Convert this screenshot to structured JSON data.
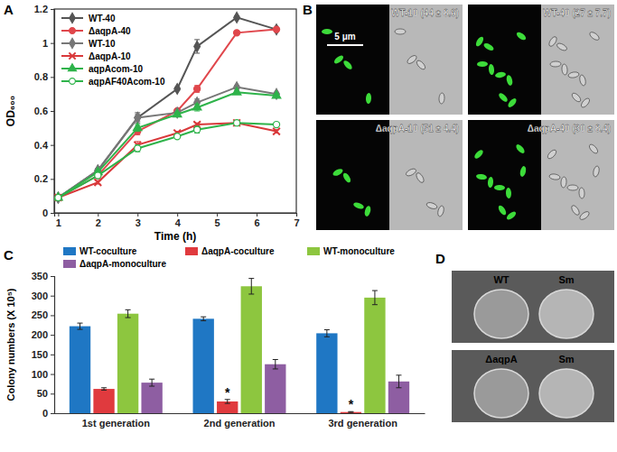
{
  "chart_data": [
    {
      "type": "line",
      "title": "A",
      "x_label": "Time (h)",
      "y_label": "OD₆₀₀",
      "x": [
        1,
        2,
        3,
        4,
        4.5,
        5.5,
        6.5
      ],
      "xlim": [
        0.9,
        7
      ],
      "xticks": [
        1,
        2,
        3,
        4,
        5,
        6,
        7
      ],
      "ylim": [
        0,
        1.2
      ],
      "yticks": [
        0,
        0.2,
        0.4,
        0.6,
        0.8,
        1,
        1.2
      ],
      "legend": "top-left",
      "series": [
        {
          "name": "WT-40",
          "color": "#555555",
          "marker": "diamond",
          "line_style": "solid",
          "values": [
            0.09,
            0.25,
            0.56,
            0.73,
            0.98,
            1.15,
            1.08
          ],
          "errors": [
            0.005,
            0.01,
            0.03,
            0.01,
            0.04,
            0.01,
            0.01
          ]
        },
        {
          "name": "ΔaqpA-40",
          "color": "#e0474c",
          "marker": "circle",
          "line_style": "solid",
          "values": [
            0.09,
            0.22,
            0.48,
            0.6,
            0.73,
            1.06,
            1.08
          ],
          "errors": [
            0.005,
            0.01,
            0.02,
            0.01,
            0.02,
            0.01,
            0.01
          ]
        },
        {
          "name": "WT-10",
          "color": "#777777",
          "marker": "diamond",
          "line_style": "solid",
          "values": [
            0.09,
            0.25,
            0.56,
            0.59,
            0.65,
            0.74,
            0.7
          ],
          "errors": [
            0.005,
            0.01,
            0.02,
            0.01,
            0.02,
            0.01,
            0.01
          ]
        },
        {
          "name": "ΔaqpA-10",
          "color": "#d9383a",
          "marker": "cross",
          "line_style": "solid",
          "values": [
            0.09,
            0.18,
            0.4,
            0.47,
            0.52,
            0.53,
            0.48
          ],
          "errors": [
            0.005,
            0.01,
            0.02,
            0.01,
            0.01,
            0.01,
            0.01
          ]
        },
        {
          "name": "aqpAcom-10",
          "color": "#2eb34a",
          "marker": "triangle",
          "line_style": "solid",
          "values": [
            0.09,
            0.24,
            0.5,
            0.58,
            0.62,
            0.71,
            0.69
          ],
          "errors": [
            0.005,
            0.01,
            0.02,
            0.01,
            0.02,
            0.01,
            0.01
          ]
        },
        {
          "name": "aqpAF40Acom-10",
          "color": "#2eb34a",
          "marker": "open-circle",
          "line_style": "solid",
          "values": [
            0.09,
            0.22,
            0.38,
            0.45,
            0.49,
            0.53,
            0.52
          ],
          "errors": [
            0.005,
            0.01,
            0.02,
            0.01,
            0.02,
            0.01,
            0.01
          ]
        }
      ]
    },
    {
      "type": "bar",
      "title": "C",
      "y_label": "Colony numbers (X 10⁵)",
      "categories": [
        "1st generation",
        "2nd generation",
        "3rd generation"
      ],
      "ylim": [
        0,
        350
      ],
      "yticks": [
        0,
        50,
        100,
        150,
        200,
        250,
        300,
        350
      ],
      "legend": "top",
      "series": [
        {
          "name": "WT-coculture",
          "color": "#1f77c4",
          "values": [
            222,
            241,
            204
          ],
          "errors": [
            8,
            5,
            9
          ]
        },
        {
          "name": "ΔaqpA-coculture",
          "color": "#e03a3e",
          "values": [
            62,
            30,
            3
          ],
          "errors": [
            3,
            5,
            1
          ],
          "value_annotations": [
            null,
            "*",
            "*"
          ]
        },
        {
          "name": "WT-monoculture",
          "color": "#8dc63f",
          "values": [
            254,
            324,
            295
          ],
          "errors": [
            10,
            20,
            18
          ]
        },
        {
          "name": "ΔaqpA-monoculture",
          "color": "#8e5ea2",
          "values": [
            78,
            125,
            81
          ],
          "errors": [
            9,
            12,
            16
          ]
        }
      ]
    }
  ],
  "images": [
    {
      "panel": "B",
      "scale_bar": "5 μm",
      "tiles": [
        "WT-10 (44 ± 8.6)",
        "WT-40 (27 ± 7.7)",
        "ΔaqpA-10 (51 ± 4.4)",
        "ΔaqpA-40 (30 ± 8.4)"
      ]
    },
    {
      "panel": "D",
      "rows": [
        [
          "WT",
          "Sm"
        ],
        [
          "ΔaqpA",
          "Sm"
        ]
      ]
    }
  ]
}
